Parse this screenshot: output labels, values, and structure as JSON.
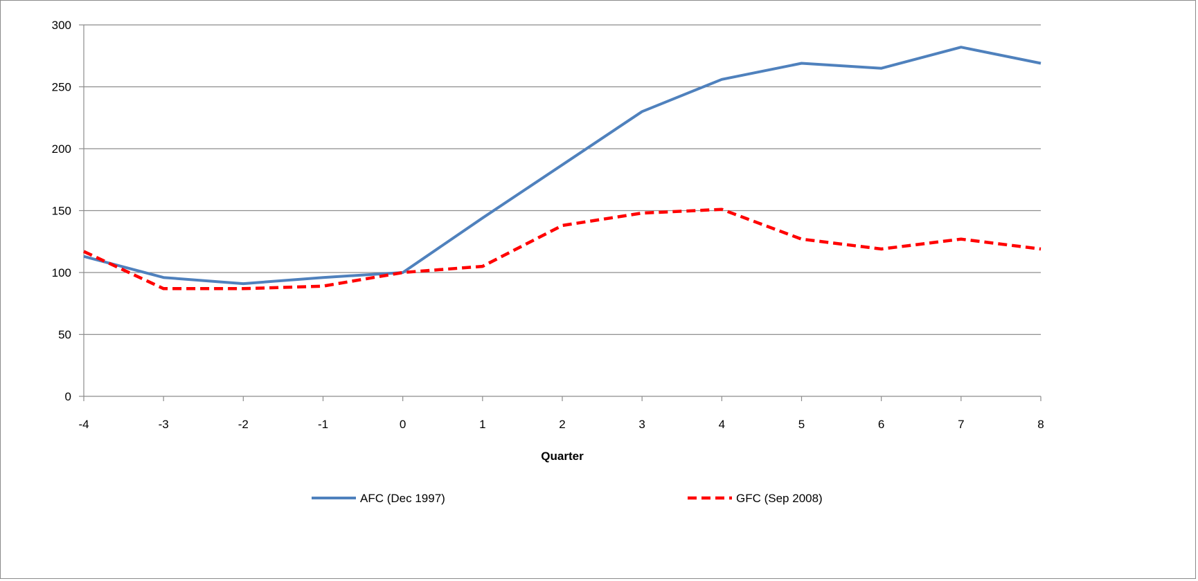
{
  "chart_data": {
    "type": "line",
    "title": "",
    "xlabel": "Quarter",
    "ylabel": "",
    "x": [
      -4,
      -3,
      -2,
      -1,
      0,
      1,
      2,
      3,
      4,
      5,
      6,
      7,
      8
    ],
    "x_tick_labels": [
      "-4",
      "-3",
      "-2",
      "-1",
      "0",
      "1",
      "2",
      "3",
      "4",
      "5",
      "6",
      "7",
      "8"
    ],
    "ylim": [
      0,
      300
    ],
    "y_ticks": [
      0,
      50,
      100,
      150,
      200,
      250,
      300
    ],
    "y_tick_labels": [
      "0",
      "50",
      "100",
      "150",
      "200",
      "250",
      "300"
    ],
    "grid": true,
    "legend_position": "bottom",
    "series": [
      {
        "name": "AFC (Dec 1997)",
        "color": "#4f81bd",
        "style": "solid",
        "values": [
          113,
          96,
          91,
          96,
          100,
          144,
          187,
          230,
          256,
          269,
          265,
          282,
          269
        ]
      },
      {
        "name": "GFC (Sep 2008)",
        "color": "#ff0000",
        "style": "dashed",
        "values": [
          117,
          87,
          87,
          89,
          100,
          105,
          138,
          148,
          151,
          127,
          119,
          127,
          119
        ]
      }
    ]
  }
}
